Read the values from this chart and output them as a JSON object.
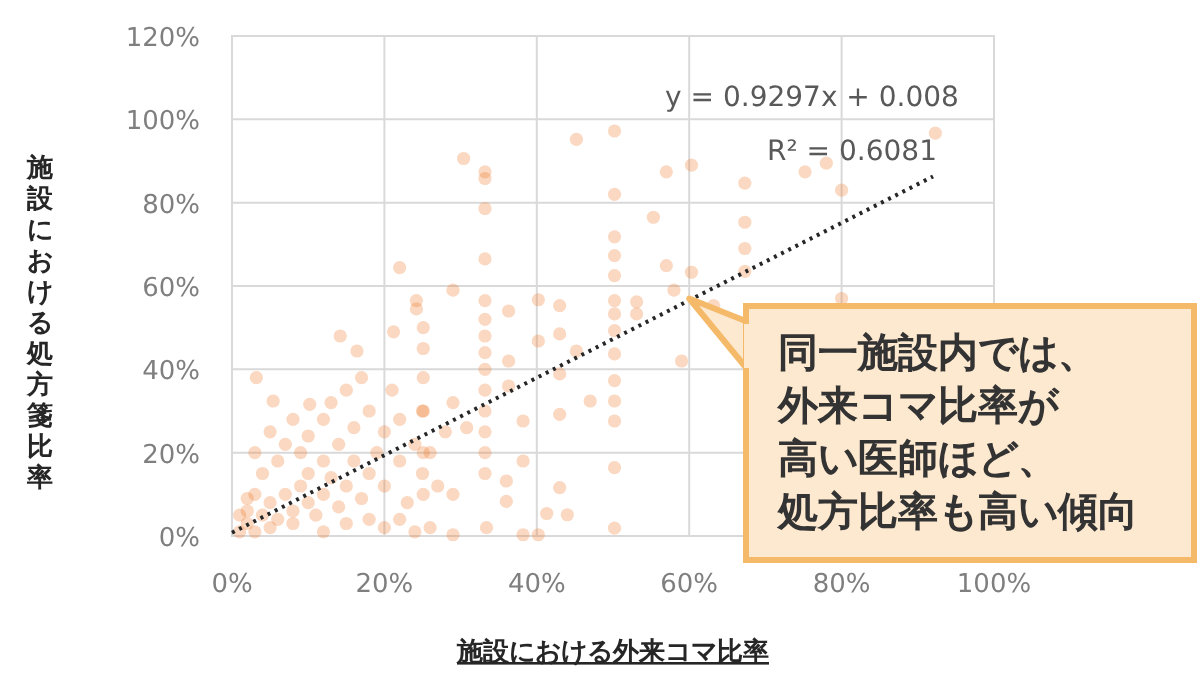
{
  "chart_data": {
    "type": "scatter",
    "xlabel": "施設における外来コマ比率",
    "ylabel": "施設における処方箋比率",
    "xlim": [
      0,
      100
    ],
    "ylim": [
      0,
      120
    ],
    "xticks": [
      {
        "value": 0,
        "label": "0%"
      },
      {
        "value": 20,
        "label": "20%"
      },
      {
        "value": 40,
        "label": "40%"
      },
      {
        "value": 60,
        "label": "60%"
      },
      {
        "value": 80,
        "label": "80%"
      },
      {
        "value": 100,
        "label": "100%"
      }
    ],
    "yticks": [
      {
        "value": 0,
        "label": "0%"
      },
      {
        "value": 20,
        "label": "20%"
      },
      {
        "value": 40,
        "label": "40%"
      },
      {
        "value": 60,
        "label": "60%"
      },
      {
        "value": 80,
        "label": "80%"
      },
      {
        "value": 100,
        "label": "100%"
      },
      {
        "value": 120,
        "label": "120%"
      }
    ],
    "grid": true,
    "marker": "circle",
    "series": [
      {
        "color": "#ed7d31",
        "x": [
          45.2,
          50.2,
          50.2,
          92.3,
          30.4,
          33.2,
          33.2,
          33.2,
          33.2,
          57,
          60.3,
          67.3,
          75.2,
          78,
          80,
          55.3,
          67.3,
          67.3,
          67.3,
          50.2,
          50.2,
          50.2,
          50.2,
          50.2,
          50.2,
          50.2,
          50.2,
          50.2,
          50.2,
          50.2,
          50.2,
          57,
          58,
          60.3,
          59,
          63.2,
          53.1,
          53.1,
          80,
          22,
          29,
          24.2,
          24.2,
          25.1,
          21.2,
          33.2,
          33.2,
          33.2,
          33.2,
          33.2,
          33.2,
          33.2,
          33.2,
          33.2,
          33.2,
          36.3,
          36.3,
          36.3,
          40.2,
          40.2,
          43,
          43,
          43,
          43,
          45.2,
          47,
          38.2,
          38.2,
          38.2,
          40.2,
          41.3,
          44,
          43,
          36,
          36,
          29,
          29,
          33.4,
          14.2,
          16.4,
          3.2,
          5.4,
          10.2,
          25.1,
          25.1,
          25.1,
          25.1,
          25.1,
          29,
          30.8,
          1,
          2,
          3,
          2,
          4,
          5,
          5,
          6,
          7,
          8,
          8,
          9,
          10,
          10,
          11,
          12,
          12,
          13,
          14,
          14,
          15,
          16,
          16,
          17,
          18,
          18,
          19,
          20,
          20,
          21,
          22,
          22,
          23,
          24,
          25,
          25,
          26,
          27,
          28,
          3,
          4,
          6,
          7,
          8,
          9,
          10,
          12,
          13,
          15,
          17,
          18,
          20,
          22,
          24,
          26,
          12,
          15,
          3,
          5,
          1,
          2
        ],
        "values": [
          95.2,
          97.2,
          82,
          96.7,
          90.6,
          87.4,
          85.8,
          78.6,
          66.5,
          87.4,
          89,
          84.7,
          87.4,
          89.5,
          83,
          76.5,
          75.3,
          69,
          63.5,
          71.8,
          67.3,
          62.5,
          56.5,
          53.3,
          49.3,
          43.7,
          37.3,
          32.4,
          27.6,
          16.4,
          1.9,
          64.9,
          59,
          63.3,
          42,
          55.3,
          56.2,
          53.3,
          57,
          64.4,
          59,
          56.5,
          54.5,
          50,
          49,
          56.5,
          52,
          48,
          44,
          40,
          35,
          30,
          25,
          20,
          15,
          54,
          42,
          36,
          56.7,
          46.8,
          55.3,
          48.5,
          38.9,
          29.2,
          44.4,
          32.4,
          27.6,
          18,
          0.3,
          0.3,
          5.4,
          5.1,
          11.6,
          8.3,
          13.2,
          10,
          0.3,
          2,
          48,
          44.4,
          38,
          32.4,
          31.6,
          45,
          38,
          30,
          20,
          10,
          32,
          26,
          1,
          3,
          1,
          6,
          5,
          2,
          8,
          4,
          10,
          6,
          3,
          12,
          8,
          15,
          5,
          10,
          18,
          14,
          7,
          22,
          12,
          18,
          26,
          9,
          15,
          30,
          20,
          12,
          25,
          35,
          18,
          28,
          8,
          22,
          30,
          15,
          20,
          12,
          25,
          10,
          15,
          18,
          22,
          28,
          20,
          24,
          28,
          32,
          35,
          38,
          4,
          2,
          4,
          1,
          2,
          1,
          3,
          20,
          25,
          5,
          9
        ]
      },
      {
        "type": "line",
        "color": "#262626",
        "line_style": "dotted",
        "marker": "none",
        "x": [
          0,
          92
        ],
        "values": [
          0.8,
          86.3
        ]
      }
    ],
    "annotations": [
      {
        "text": "y = 0.9297x + 0.008"
      },
      {
        "text": "R² = 0.6081"
      },
      {
        "text": "同一施設内では、外来コマ比率が高い医師ほど、処方比率も高い傾向",
        "x": 60,
        "y": 57
      }
    ]
  }
}
